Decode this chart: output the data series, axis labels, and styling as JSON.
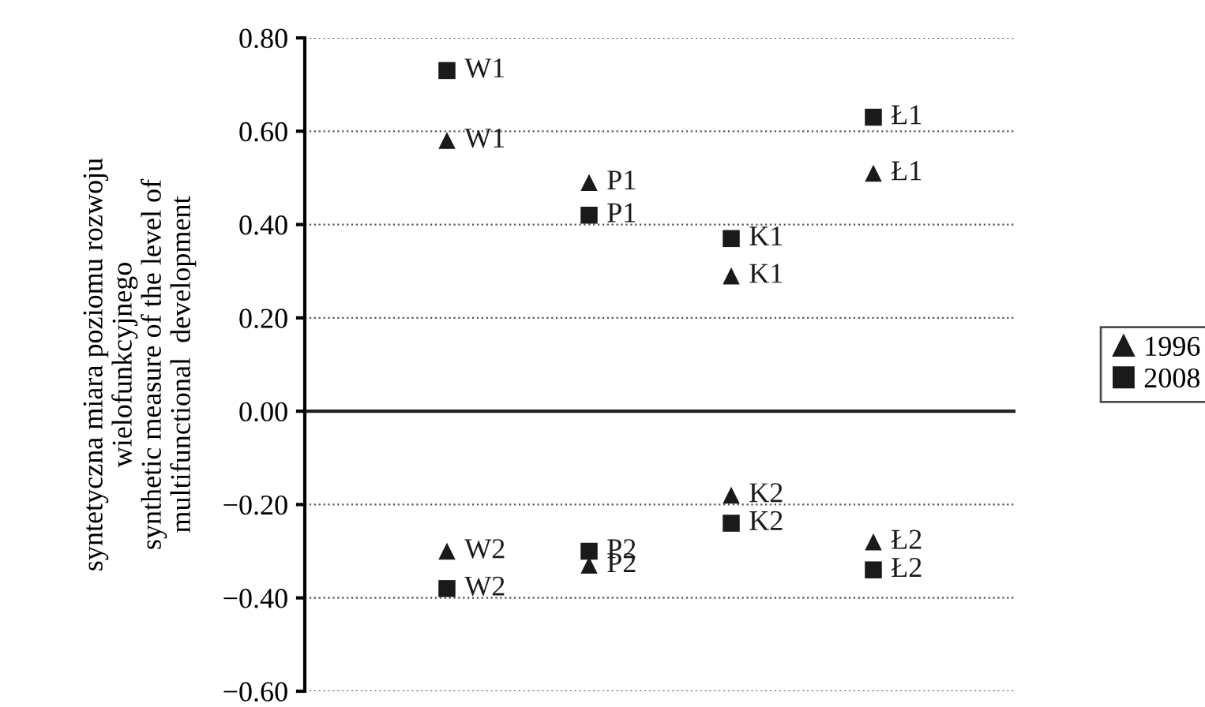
{
  "chart_data": {
    "type": "scatter",
    "ylabel": "syntetyczna miara poziomu rozwoju\nwielofunkcyjnego\nsynthetic measure of the level of\nmultifunctional  development",
    "categories": [
      null,
      null,
      null,
      null
    ],
    "series": [
      {
        "name": "1996",
        "color": "#1a1a1a",
        "marker": "triangle",
        "values": [
          0.58,
          0.49,
          0.29,
          0.51
        ],
        "value_labels": [
          "W1",
          "P1",
          "K1",
          "Ł1"
        ]
      },
      {
        "color": "#1a1a1a",
        "marker": "triangle",
        "values": [
          -0.3,
          -0.33,
          -0.18,
          -0.28
        ],
        "value_labels": [
          "W2",
          "P2",
          "K2",
          "Ł2"
        ]
      },
      {
        "name": "2008",
        "color": "#1a1a1a",
        "marker": "square",
        "values": [
          0.73,
          0.42,
          0.37,
          0.63
        ],
        "value_labels": [
          "W1",
          "P1",
          "K1",
          "Ł1"
        ]
      },
      {
        "color": "#1a1a1a",
        "marker": "square",
        "values": [
          -0.38,
          -0.3,
          -0.24,
          -0.34
        ],
        "value_labels": [
          "W2",
          "P2",
          "K2",
          "Ł2"
        ]
      }
    ],
    "ylim": [
      -0.6,
      0.8
    ],
    "yticks": [
      {
        "value": -0.6,
        "label": "−0.60"
      },
      {
        "value": -0.4,
        "label": "−0.40"
      },
      {
        "value": -0.2,
        "label": "−0.20"
      },
      {
        "value": 0,
        "label": "0.00"
      },
      {
        "value": 0.2,
        "label": "0.20"
      },
      {
        "value": 0.4,
        "label": "0.40"
      },
      {
        "value": 0.6,
        "label": "0.60"
      },
      {
        "value": 0.8,
        "label": "0.80"
      }
    ],
    "grid": "y",
    "ref_lines": [
      {
        "axis": "y",
        "value": 0
      }
    ],
    "legend": "right",
    "tick_labels": "y"
  }
}
